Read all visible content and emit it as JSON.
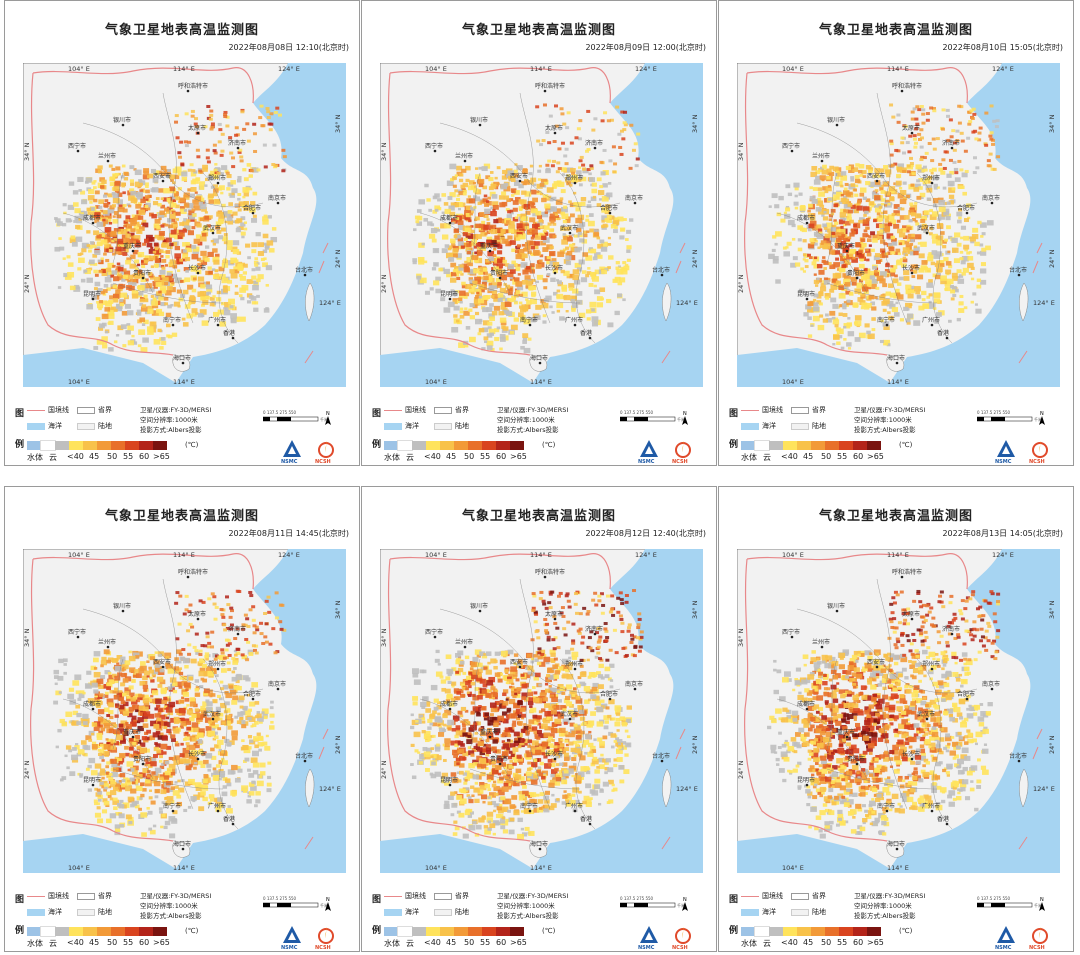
{
  "panels": [
    {
      "title": "气象卫星地表高温监测图",
      "time": "2022年08月08日 12:10(北京时)",
      "heat": 0.62,
      "north": 0.35
    },
    {
      "title": "气象卫星地表高温监测图",
      "time": "2022年08月09日 12:00(北京时)",
      "heat": 0.58,
      "north": 0.25
    },
    {
      "title": "气象卫星地表高温监测图",
      "time": "2022年08月10日 15:05(北京时)",
      "heat": 0.55,
      "north": 0.45
    },
    {
      "title": "气象卫星地表高温监测图",
      "time": "2022年08月11日 14:45(北京时)",
      "heat": 0.66,
      "north": 0.4
    },
    {
      "title": "气象卫星地表高温监测图",
      "time": "2022年08月12日 12:40(北京时)",
      "heat": 0.75,
      "north": 0.5
    },
    {
      "title": "气象卫星地表高温监测图",
      "time": "2022年08月13日 14:05(北京时)",
      "heat": 0.72,
      "north": 0.55
    }
  ],
  "coords": {
    "top": [
      "104° E",
      "114° E",
      "124° E"
    ],
    "bottom": [
      "104° E",
      "114° E"
    ],
    "left": [
      "34° N",
      "24° N"
    ],
    "right": [
      "34° N",
      "24° N",
      "124° E"
    ]
  },
  "cities": [
    "呼和浩特市",
    "太原市",
    "银川市",
    "西宁市",
    "兰州市",
    "济南市",
    "郑州市",
    "西安市",
    "成都市",
    "重庆市",
    "武汉市",
    "南京市",
    "合肥市",
    "长沙市",
    "贵阳市",
    "昆明市",
    "南宁市",
    "广州市",
    "台北市",
    "香港",
    "海口市"
  ],
  "legend": {
    "tu": "图",
    "li": "例",
    "border": "国境线",
    "province": "省界",
    "sea": "海洋",
    "land": "陆地",
    "satellite": "卫星/仪器:FY-3D/MERSI",
    "resolution": "空间分辨率:1000米",
    "projection": "投影方式:Albers投影",
    "unit": "(℃)",
    "scale_labels": "0  137.5 275      550",
    "scale_unit": "千米",
    "north": "N",
    "labels": [
      "水体",
      "云",
      "<40",
      "45",
      "50",
      "55",
      "60",
      ">65"
    ],
    "colors": [
      "#9dc3e6",
      "#ffffff",
      "#bfbfbf",
      "#ffe35c",
      "#f8c24a",
      "#f29a38",
      "#e8702a",
      "#d9441f",
      "#b3241a",
      "#7a1410"
    ],
    "logo1": "NSMC",
    "logo2": "NCSH"
  },
  "colors": {
    "sea": "#a6d4f2",
    "land": "#f2f2f2",
    "border": "#e8888a",
    "province": "#777777"
  }
}
